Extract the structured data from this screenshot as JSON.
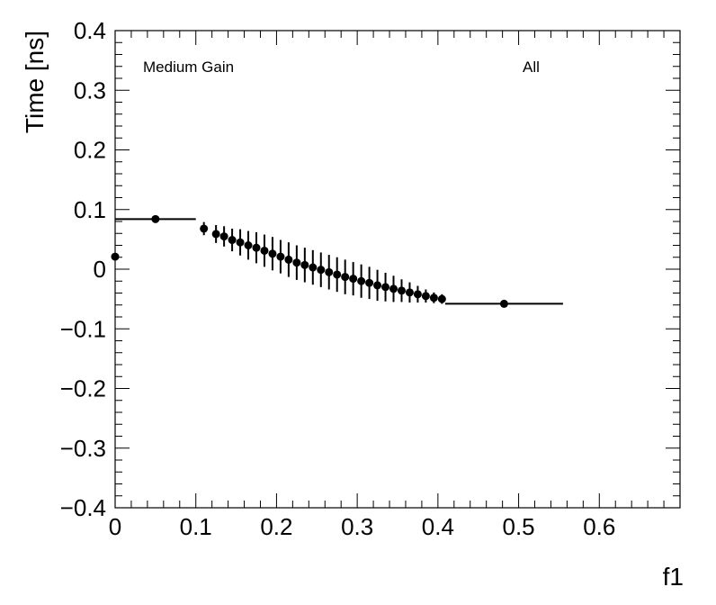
{
  "chart_data": {
    "type": "scatter",
    "title": "",
    "xlabel": "f1",
    "ylabel": "Time [ns]",
    "xlim": [
      0,
      0.7
    ],
    "ylim": [
      -0.4,
      0.4
    ],
    "x_ticks": [
      "0",
      "0.1",
      "0.2",
      "0.3",
      "0.4",
      "0.5",
      "0.6"
    ],
    "y_ticks": [
      "−0.4",
      "−0.3",
      "−0.2",
      "−0.1",
      "0",
      "0.1",
      "0.2",
      "0.3",
      "0.4"
    ],
    "grid": false,
    "legend": null,
    "annotations": [
      {
        "text": "Medium Gain",
        "position": "top-left"
      },
      {
        "text": "All",
        "position": "top-right"
      }
    ],
    "series": [
      {
        "marker_color": "#000000",
        "points": [
          {
            "x": 0.0,
            "y": 0.021,
            "xerr": 0.0,
            "yerr": 0.004
          },
          {
            "x": 0.05,
            "y": 0.084,
            "xerr": 0.05,
            "yerr": 0.006
          },
          {
            "x": 0.11,
            "y": 0.068,
            "xerr": 0.004,
            "yerr": 0.011
          },
          {
            "x": 0.125,
            "y": 0.059,
            "xerr": 0.004,
            "yerr": 0.015
          },
          {
            "x": 0.135,
            "y": 0.055,
            "xerr": 0.004,
            "yerr": 0.017
          },
          {
            "x": 0.145,
            "y": 0.049,
            "xerr": 0.004,
            "yerr": 0.019
          },
          {
            "x": 0.155,
            "y": 0.045,
            "xerr": 0.004,
            "yerr": 0.022
          },
          {
            "x": 0.165,
            "y": 0.04,
            "xerr": 0.004,
            "yerr": 0.024
          },
          {
            "x": 0.175,
            "y": 0.036,
            "xerr": 0.004,
            "yerr": 0.026
          },
          {
            "x": 0.185,
            "y": 0.031,
            "xerr": 0.004,
            "yerr": 0.027
          },
          {
            "x": 0.195,
            "y": 0.026,
            "xerr": 0.004,
            "yerr": 0.028
          },
          {
            "x": 0.205,
            "y": 0.021,
            "xerr": 0.004,
            "yerr": 0.028
          },
          {
            "x": 0.215,
            "y": 0.016,
            "xerr": 0.004,
            "yerr": 0.029
          },
          {
            "x": 0.225,
            "y": 0.011,
            "xerr": 0.004,
            "yerr": 0.029
          },
          {
            "x": 0.235,
            "y": 0.007,
            "xerr": 0.004,
            "yerr": 0.029
          },
          {
            "x": 0.245,
            "y": 0.003,
            "xerr": 0.004,
            "yerr": 0.029
          },
          {
            "x": 0.255,
            "y": -0.001,
            "xerr": 0.004,
            "yerr": 0.029
          },
          {
            "x": 0.265,
            "y": -0.005,
            "xerr": 0.004,
            "yerr": 0.029
          },
          {
            "x": 0.275,
            "y": -0.009,
            "xerr": 0.004,
            "yerr": 0.029
          },
          {
            "x": 0.285,
            "y": -0.013,
            "xerr": 0.004,
            "yerr": 0.029
          },
          {
            "x": 0.295,
            "y": -0.016,
            "xerr": 0.004,
            "yerr": 0.028
          },
          {
            "x": 0.305,
            "y": -0.02,
            "xerr": 0.004,
            "yerr": 0.028
          },
          {
            "x": 0.315,
            "y": -0.023,
            "xerr": 0.004,
            "yerr": 0.027
          },
          {
            "x": 0.325,
            "y": -0.027,
            "xerr": 0.004,
            "yerr": 0.026
          },
          {
            "x": 0.335,
            "y": -0.03,
            "xerr": 0.004,
            "yerr": 0.024
          },
          {
            "x": 0.345,
            "y": -0.033,
            "xerr": 0.004,
            "yerr": 0.022
          },
          {
            "x": 0.355,
            "y": -0.036,
            "xerr": 0.004,
            "yerr": 0.019
          },
          {
            "x": 0.365,
            "y": -0.039,
            "xerr": 0.004,
            "yerr": 0.017
          },
          {
            "x": 0.375,
            "y": -0.042,
            "xerr": 0.004,
            "yerr": 0.014
          },
          {
            "x": 0.385,
            "y": -0.045,
            "xerr": 0.004,
            "yerr": 0.011
          },
          {
            "x": 0.395,
            "y": -0.048,
            "xerr": 0.004,
            "yerr": 0.009
          },
          {
            "x": 0.405,
            "y": -0.05,
            "xerr": 0.004,
            "yerr": 0.008
          },
          {
            "x": 0.482,
            "y": -0.058,
            "xerr": 0.073,
            "yerr": 0.004
          }
        ]
      }
    ]
  }
}
